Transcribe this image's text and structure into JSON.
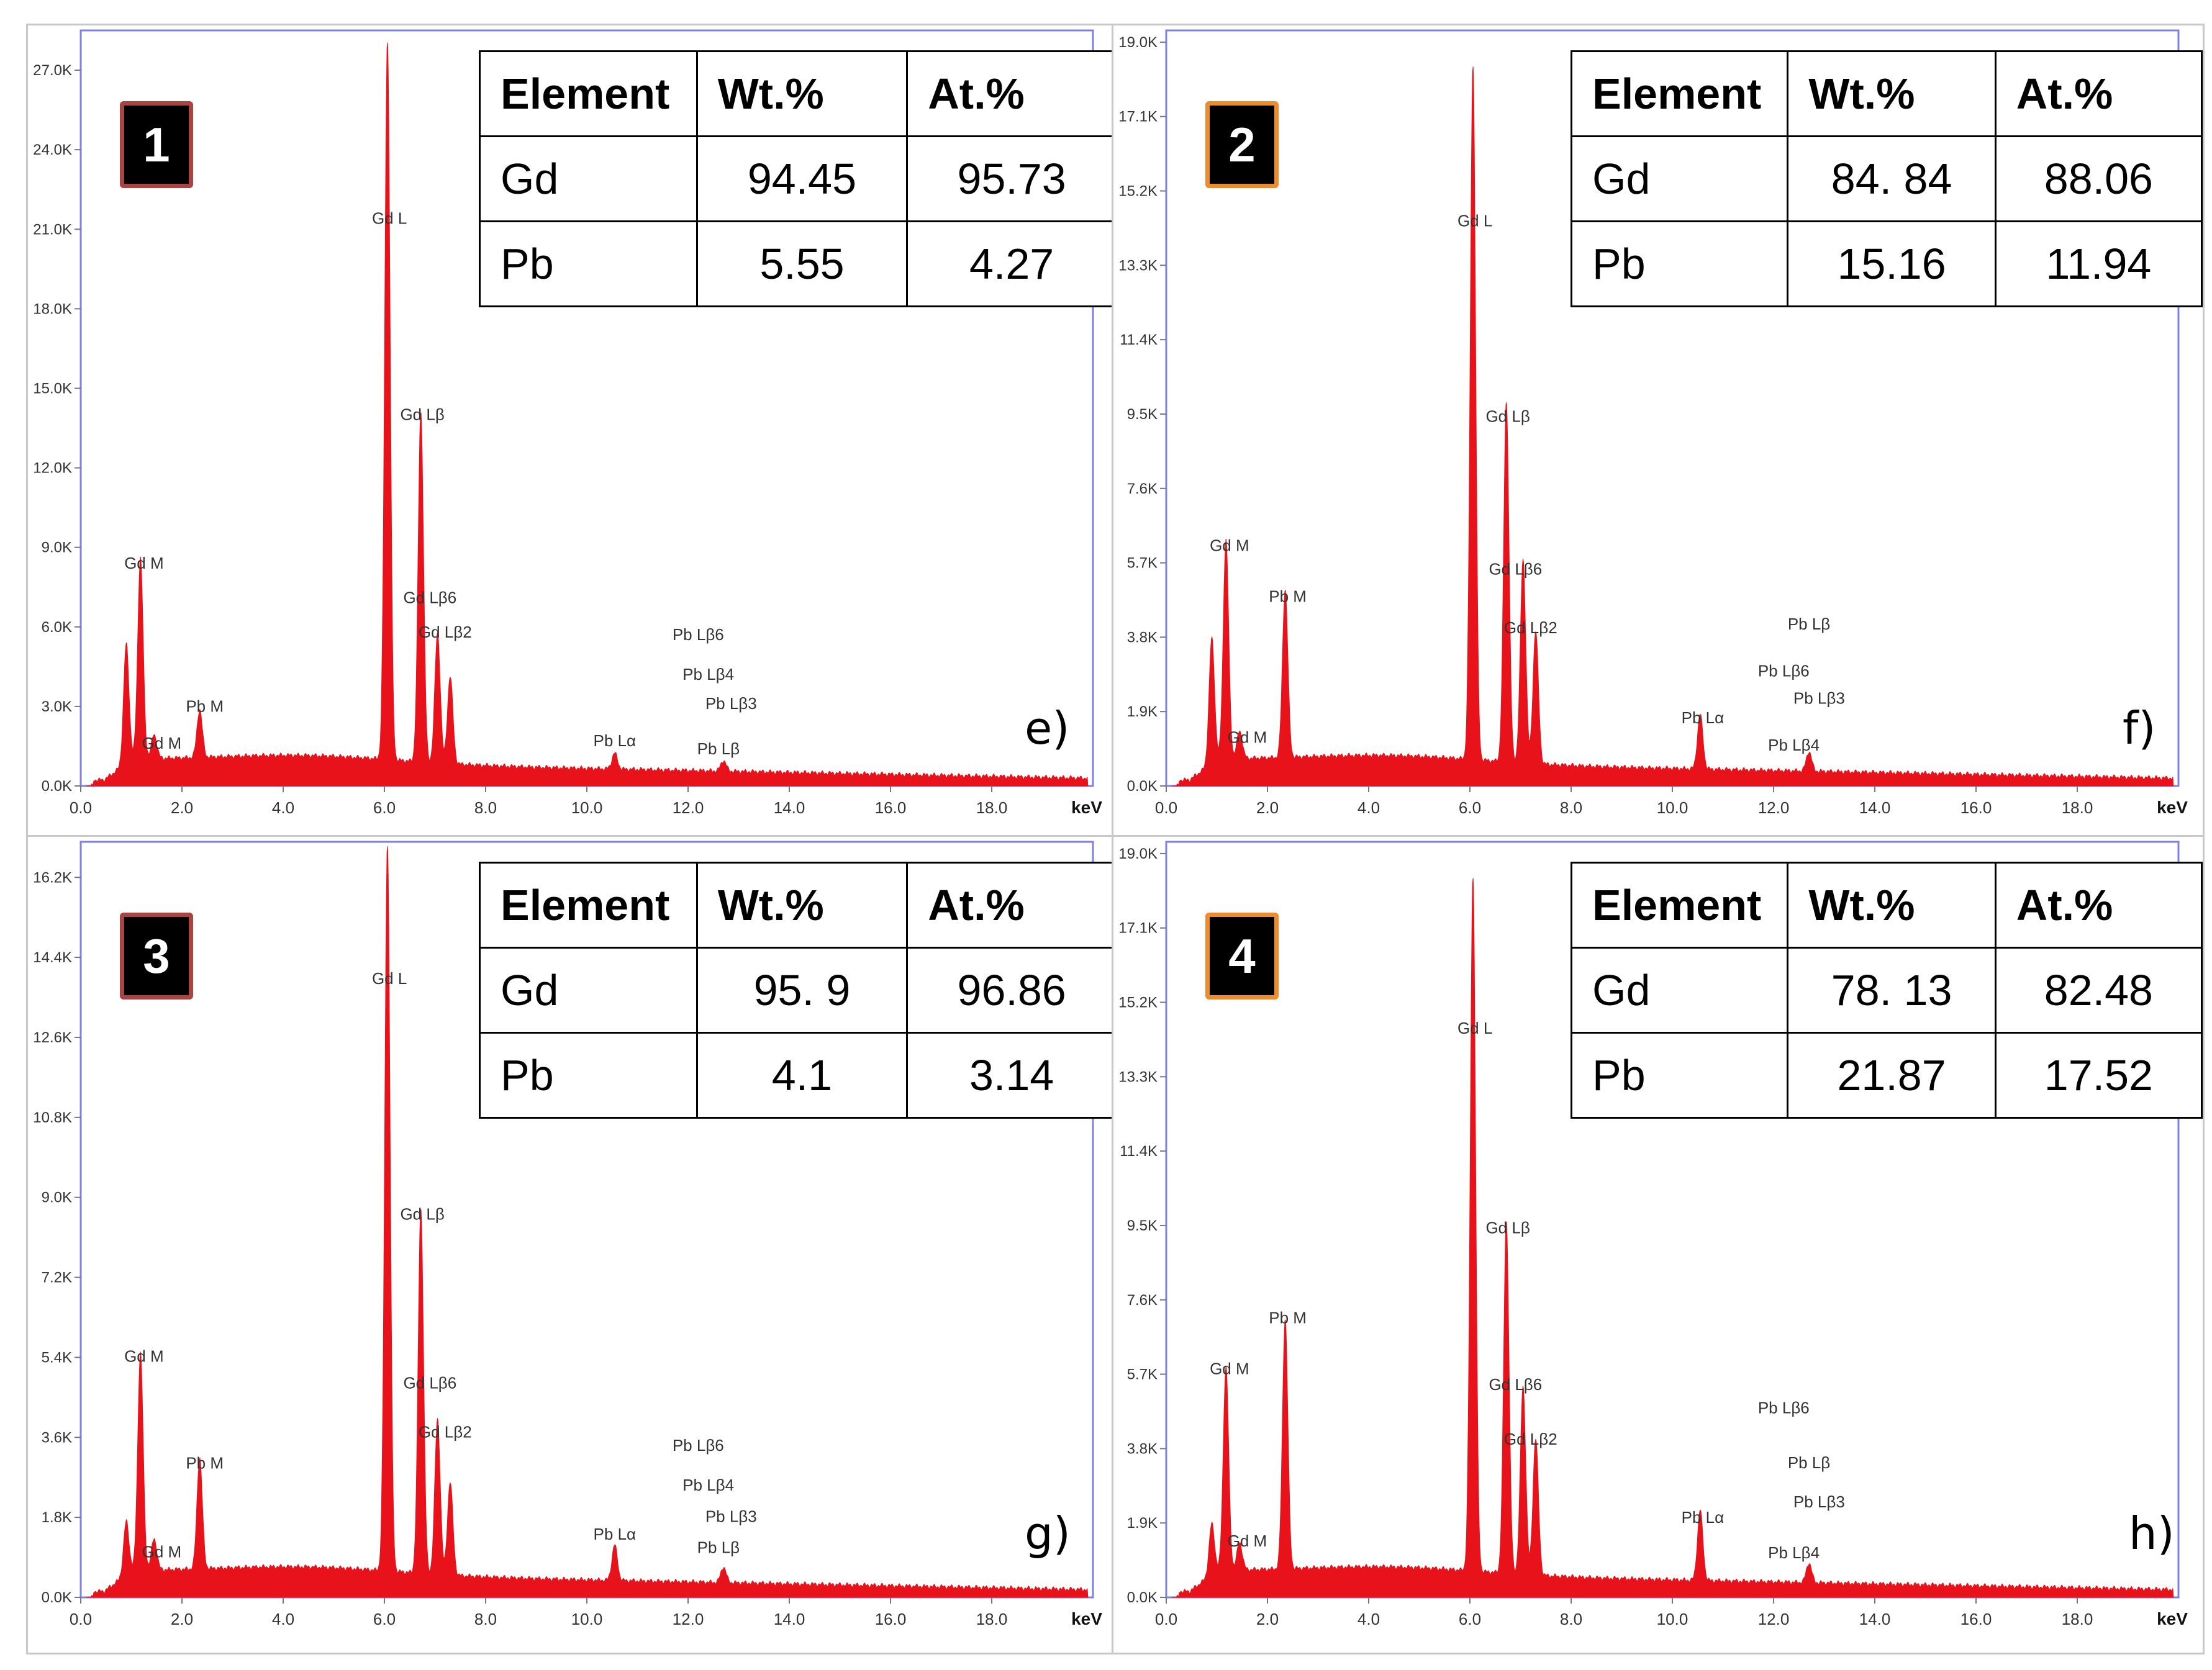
{
  "colors": {
    "spectrum": "#e8131a",
    "frame": "#8080e0",
    "badge_border_1": "#a94442",
    "badge_border_2": "#ed8c2d"
  },
  "chart_data": [
    {
      "type": "area",
      "panel_number": "1",
      "panel_letter": "e)",
      "xlabel": "keV",
      "xlim": [
        0,
        20
      ],
      "ylim": [
        0,
        28500
      ],
      "xticks": [
        "0.0",
        "2.0",
        "4.0",
        "6.0",
        "8.0",
        "10.0",
        "12.0",
        "14.0",
        "16.0",
        "18.0"
      ],
      "yticks": [
        "0.0K",
        "3.0K",
        "6.0K",
        "9.0K",
        "12.0K",
        "15.0K",
        "18.0K",
        "21.0K",
        "24.0K",
        "27.0K"
      ],
      "ytick_values": [
        0,
        3000,
        6000,
        9000,
        12000,
        15000,
        18000,
        21000,
        24000,
        27000
      ],
      "peaks": [
        [
          0.9,
          4500
        ],
        [
          1.18,
          7600
        ],
        [
          1.45,
          900
        ],
        [
          2.35,
          1800
        ],
        [
          6.06,
          27200
        ],
        [
          6.72,
          13200
        ],
        [
          7.05,
          4900
        ],
        [
          7.3,
          3300
        ],
        [
          10.55,
          600
        ],
        [
          12.7,
          400
        ]
      ],
      "labels": [
        {
          "text": "Gd M",
          "x": 1.25,
          "y": 8200
        },
        {
          "text": "Gd M",
          "x": 1.6,
          "y": 1400
        },
        {
          "text": "Pb M",
          "x": 2.45,
          "y": 2800
        },
        {
          "text": "Gd L",
          "x": 6.1,
          "y": 21200
        },
        {
          "text": "Gd Lβ",
          "x": 6.75,
          "y": 13800
        },
        {
          "text": "Gd Lβ6",
          "x": 6.9,
          "y": 6900
        },
        {
          "text": "Gd Lβ2",
          "x": 7.2,
          "y": 5600
        },
        {
          "text": "Pb Lα",
          "x": 10.55,
          "y": 1500
        },
        {
          "text": "Pb Lβ6",
          "x": 12.2,
          "y": 5500
        },
        {
          "text": "Pb Lβ4",
          "x": 12.4,
          "y": 4000
        },
        {
          "text": "Pb Lβ3",
          "x": 12.85,
          "y": 2900
        },
        {
          "text": "Pb Lβ",
          "x": 12.6,
          "y": 1200
        }
      ],
      "table": {
        "headers": [
          "Element",
          "Wt.%",
          "At.%"
        ],
        "rows": [
          [
            "Gd",
            "94.45",
            "95.73"
          ],
          [
            "Pb",
            "5.55",
            "4.27"
          ]
        ]
      }
    },
    {
      "type": "area",
      "panel_number": "2",
      "panel_letter": "f)",
      "xlabel": "keV",
      "xlim": [
        0,
        20
      ],
      "ylim": [
        0,
        19300
      ],
      "xticks": [
        "0.0",
        "2.0",
        "4.0",
        "6.0",
        "8.0",
        "10.0",
        "12.0",
        "14.0",
        "16.0",
        "18.0"
      ],
      "yticks": [
        "0.0K",
        "1.9K",
        "3.8K",
        "5.7K",
        "7.6K",
        "9.5K",
        "11.4K",
        "13.3K",
        "15.2K",
        "17.1K",
        "19.0K"
      ],
      "ytick_values": [
        0,
        1900,
        3800,
        5700,
        7600,
        9500,
        11400,
        13300,
        15200,
        17100,
        19000
      ],
      "peaks": [
        [
          0.9,
          3200
        ],
        [
          1.18,
          5600
        ],
        [
          1.45,
          700
        ],
        [
          2.35,
          4300
        ],
        [
          6.06,
          17800
        ],
        [
          6.72,
          9200
        ],
        [
          7.05,
          5200
        ],
        [
          7.3,
          3400
        ],
        [
          10.55,
          1400
        ],
        [
          12.7,
          500
        ]
      ],
      "labels": [
        {
          "text": "Gd M",
          "x": 1.25,
          "y": 6000
        },
        {
          "text": "Gd M",
          "x": 1.6,
          "y": 1100
        },
        {
          "text": "Pb M",
          "x": 2.4,
          "y": 4700
        },
        {
          "text": "Gd L",
          "x": 6.1,
          "y": 14300
        },
        {
          "text": "Gd Lβ",
          "x": 6.75,
          "y": 9300
        },
        {
          "text": "Gd Lβ6",
          "x": 6.9,
          "y": 5400
        },
        {
          "text": "Gd Lβ2",
          "x": 7.2,
          "y": 3900
        },
        {
          "text": "Pb Lα",
          "x": 10.6,
          "y": 1600
        },
        {
          "text": "Pb Lβ",
          "x": 12.7,
          "y": 4000
        },
        {
          "text": "Pb Lβ6",
          "x": 12.2,
          "y": 2800
        },
        {
          "text": "Pb Lβ3",
          "x": 12.9,
          "y": 2100
        },
        {
          "text": "Pb Lβ4",
          "x": 12.4,
          "y": 900
        }
      ],
      "table": {
        "headers": [
          "Element",
          "Wt.%",
          "At.%"
        ],
        "rows": [
          [
            "Gd",
            "84. 84",
            "88.06"
          ],
          [
            "Pb",
            "15.16",
            "11.94"
          ]
        ]
      }
    },
    {
      "type": "area",
      "panel_number": "3",
      "panel_letter": "g)",
      "xlabel": "keV",
      "xlim": [
        0,
        20
      ],
      "ylim": [
        0,
        17000
      ],
      "xticks": [
        "0.0",
        "2.0",
        "4.0",
        "6.0",
        "8.0",
        "10.0",
        "12.0",
        "14.0",
        "16.0",
        "18.0"
      ],
      "yticks": [
        "0.0K",
        "1.8K",
        "3.6K",
        "5.4K",
        "7.2K",
        "9.0K",
        "10.8K",
        "12.6K",
        "14.4K",
        "16.2K"
      ],
      "ytick_values": [
        0,
        1800,
        3600,
        5400,
        7200,
        9000,
        10800,
        12600,
        14400,
        16200
      ],
      "peaks": [
        [
          0.9,
          1200
        ],
        [
          1.18,
          4900
        ],
        [
          1.45,
          700
        ],
        [
          2.35,
          2500
        ],
        [
          6.06,
          16400
        ],
        [
          6.72,
          8200
        ],
        [
          7.05,
          3500
        ],
        [
          7.3,
          2100
        ],
        [
          10.55,
          800
        ],
        [
          12.7,
          350
        ]
      ],
      "labels": [
        {
          "text": "Gd M",
          "x": 1.25,
          "y": 5300
        },
        {
          "text": "Gd M",
          "x": 1.6,
          "y": 900
        },
        {
          "text": "Pb M",
          "x": 2.45,
          "y": 2900
        },
        {
          "text": "Gd L",
          "x": 6.1,
          "y": 13800
        },
        {
          "text": "Gd Lβ",
          "x": 6.75,
          "y": 8500
        },
        {
          "text": "Gd Lβ6",
          "x": 6.9,
          "y": 4700
        },
        {
          "text": "Gd Lβ2",
          "x": 7.2,
          "y": 3600
        },
        {
          "text": "Pb Lα",
          "x": 10.55,
          "y": 1300
        },
        {
          "text": "Pb Lβ6",
          "x": 12.2,
          "y": 3300
        },
        {
          "text": "Pb Lβ4",
          "x": 12.4,
          "y": 2400
        },
        {
          "text": "Pb Lβ3",
          "x": 12.85,
          "y": 1700
        },
        {
          "text": "Pb Lβ",
          "x": 12.6,
          "y": 1000
        }
      ],
      "table": {
        "headers": [
          "Element",
          "Wt.%",
          "At.%"
        ],
        "rows": [
          [
            "Gd",
            "95. 9",
            "96.86"
          ],
          [
            "Pb",
            "4.1",
            "3.14"
          ]
        ]
      }
    },
    {
      "type": "area",
      "panel_number": "4",
      "panel_letter": "h)",
      "xlabel": "keV",
      "xlim": [
        0,
        20
      ],
      "ylim": [
        0,
        19300
      ],
      "xticks": [
        "0.0",
        "2.0",
        "4.0",
        "6.0",
        "8.0",
        "10.0",
        "12.0",
        "14.0",
        "16.0",
        "18.0"
      ],
      "yticks": [
        "0.0K",
        "1.9K",
        "3.8K",
        "5.7K",
        "7.6K",
        "9.5K",
        "11.4K",
        "13.3K",
        "15.2K",
        "17.1K",
        "19.0K"
      ],
      "ytick_values": [
        0,
        1900,
        3800,
        5700,
        7600,
        9500,
        11400,
        13300,
        15200,
        17100,
        19000
      ],
      "peaks": [
        [
          0.9,
          1300
        ],
        [
          1.18,
          5200
        ],
        [
          1.45,
          700
        ],
        [
          2.35,
          6400
        ],
        [
          6.06,
          17800
        ],
        [
          6.72,
          9000
        ],
        [
          7.05,
          4800
        ],
        [
          7.3,
          3500
        ],
        [
          10.55,
          1800
        ],
        [
          12.7,
          500
        ]
      ],
      "labels": [
        {
          "text": "Gd M",
          "x": 1.25,
          "y": 5700
        },
        {
          "text": "Gd M",
          "x": 1.6,
          "y": 1300
        },
        {
          "text": "Pb M",
          "x": 2.4,
          "y": 7000
        },
        {
          "text": "Gd L",
          "x": 6.1,
          "y": 14400
        },
        {
          "text": "Gd Lβ",
          "x": 6.75,
          "y": 9300
        },
        {
          "text": "Gd Lβ6",
          "x": 6.9,
          "y": 5300
        },
        {
          "text": "Gd Lβ2",
          "x": 7.2,
          "y": 3900
        },
        {
          "text": "Pb Lα",
          "x": 10.6,
          "y": 1900
        },
        {
          "text": "Pb Lβ6",
          "x": 12.2,
          "y": 4700
        },
        {
          "text": "Pb Lβ",
          "x": 12.7,
          "y": 3300
        },
        {
          "text": "Pb Lβ3",
          "x": 12.9,
          "y": 2300
        },
        {
          "text": "Pb Lβ4",
          "x": 12.4,
          "y": 1000
        }
      ],
      "table": {
        "headers": [
          "Element",
          "Wt.%",
          "At.%"
        ],
        "rows": [
          [
            "Gd",
            "78. 13",
            "82.48"
          ],
          [
            "Pb",
            "21.87",
            "17.52"
          ]
        ]
      }
    }
  ]
}
